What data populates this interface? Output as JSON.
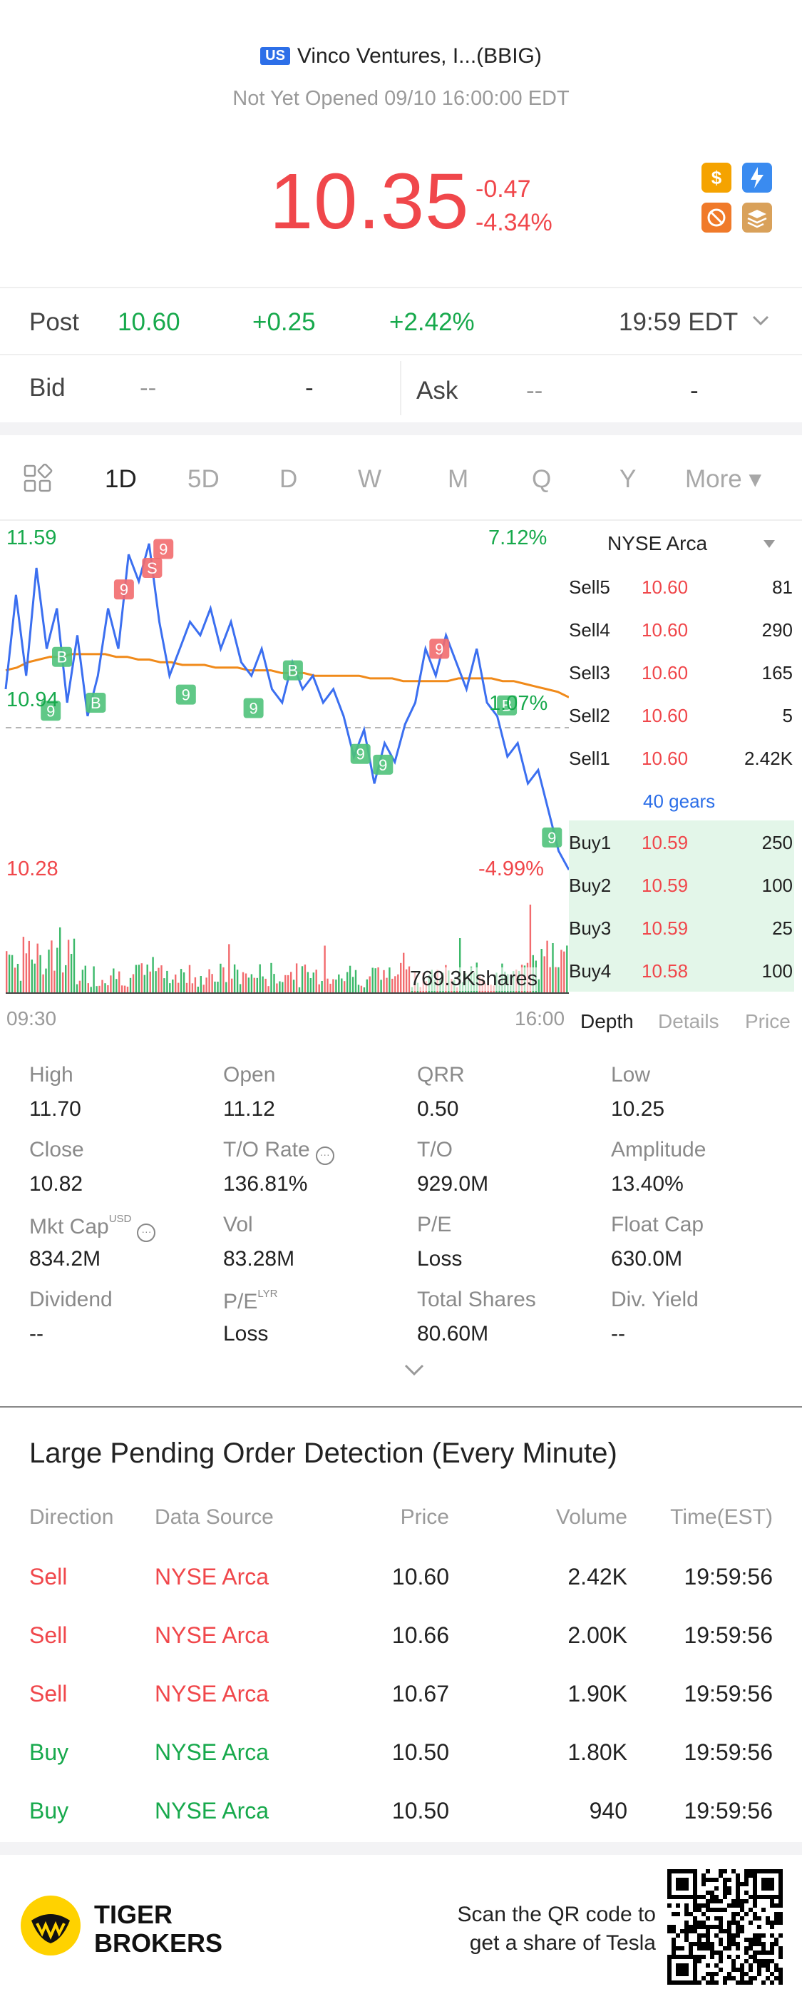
{
  "header": {
    "market_badge": "US",
    "title": "Vinco Ventures, I...(BBIG)",
    "status": "Not Yet Opened 09/10 16:00:00 EDT",
    "price": "10.35",
    "change": "-0.47",
    "change_pct": "-4.34%",
    "quick_icons": [
      "dollar-icon",
      "flash-1-icon",
      "no-short-icon",
      "layers-a-icon"
    ]
  },
  "post": {
    "label": "Post",
    "price": "10.60",
    "change": "+0.25",
    "change_pct": "+2.42%",
    "time": "19:59 EDT"
  },
  "bid_ask": {
    "bid_label": "Bid",
    "bid_price": "--",
    "bid_vol": "-",
    "ask_label": "Ask",
    "ask_price": "--",
    "ask_vol": "-"
  },
  "tabs": [
    "1D",
    "5D",
    "D",
    "W",
    "M",
    "Q",
    "Y",
    "More ▾"
  ],
  "active_tab": "1D",
  "chart_labels": {
    "high": "11.59",
    "mid": "10.94",
    "low": "10.28",
    "pct_high": "7.12%",
    "pct_mid": "1.07%",
    "pct_low": "-4.99%",
    "volume": "769.3Kshares",
    "time_start": "09:30",
    "time_end": "16:00"
  },
  "chart_data": {
    "type": "line",
    "x_range": [
      "09:30",
      "16:00"
    ],
    "ylim": [
      10.28,
      11.59
    ],
    "reference": 10.82,
    "series": [
      {
        "values": [
          11.05,
          11.4,
          11.1,
          11.5,
          11.2,
          11.35,
          11.0,
          11.25,
          10.95,
          11.1,
          11.35,
          11.2,
          11.55,
          11.45,
          11.59,
          11.3,
          11.1,
          11.2,
          11.3,
          11.25,
          11.35,
          11.2,
          11.3,
          11.15,
          11.1,
          11.2,
          11.05,
          11.0,
          11.15,
          11.05,
          11.1,
          11.0,
          11.05,
          10.95,
          10.8,
          10.9,
          10.7,
          10.85,
          10.78,
          10.92,
          11.0,
          11.2,
          11.1,
          11.25,
          11.15,
          11.05,
          11.2,
          11.0,
          10.95,
          10.8,
          10.85,
          10.7,
          10.75,
          10.6,
          10.45,
          10.38
        ]
      },
      {
        "values": [
          11.12,
          11.13,
          11.15,
          11.16,
          11.17,
          11.17,
          11.18,
          11.18,
          11.18,
          11.18,
          11.17,
          11.17,
          11.16,
          11.16,
          11.15,
          11.15,
          11.14,
          11.14,
          11.14,
          11.13,
          11.13,
          11.13,
          11.12,
          11.12,
          11.12,
          11.11,
          11.11,
          11.11,
          11.1,
          11.1,
          11.1,
          11.1,
          11.1,
          11.09,
          11.09,
          11.09,
          11.08,
          11.08,
          11.08,
          11.08,
          11.08,
          11.09,
          11.09,
          11.09,
          11.09,
          11.08,
          11.08,
          11.07,
          11.06,
          11.05,
          11.04,
          11.02
        ]
      }
    ],
    "signals": [
      {
        "label": "9",
        "kind": "sell",
        "t": 0.21,
        "v": 11.42
      },
      {
        "label": "S",
        "kind": "sell",
        "t": 0.26,
        "v": 11.5
      },
      {
        "label": "9",
        "kind": "sell",
        "t": 0.28,
        "v": 11.57
      },
      {
        "label": "9",
        "kind": "sell",
        "t": 0.77,
        "v": 11.2
      },
      {
        "label": "B",
        "kind": "buy",
        "t": 0.1,
        "v": 11.17
      },
      {
        "label": "9",
        "kind": "buy",
        "t": 0.08,
        "v": 10.97
      },
      {
        "label": "B",
        "kind": "buy",
        "t": 0.16,
        "v": 11.0
      },
      {
        "label": "9",
        "kind": "buy",
        "t": 0.32,
        "v": 11.03
      },
      {
        "label": "B",
        "kind": "buy",
        "t": 0.51,
        "v": 11.12
      },
      {
        "label": "9",
        "kind": "buy",
        "t": 0.44,
        "v": 10.98
      },
      {
        "label": "9",
        "kind": "buy",
        "t": 0.63,
        "v": 10.81
      },
      {
        "label": "9",
        "kind": "buy",
        "t": 0.67,
        "v": 10.77
      },
      {
        "label": "B",
        "kind": "buy",
        "t": 0.89,
        "v": 10.99
      },
      {
        "label": "9",
        "kind": "buy",
        "t": 0.97,
        "v": 10.5
      }
    ]
  },
  "order_book": {
    "exchange": "NYSE Arca",
    "sells": [
      {
        "label": "Sell5",
        "price": "10.60",
        "vol": "81"
      },
      {
        "label": "Sell4",
        "price": "10.60",
        "vol": "290"
      },
      {
        "label": "Sell3",
        "price": "10.60",
        "vol": "165"
      },
      {
        "label": "Sell2",
        "price": "10.60",
        "vol": "5"
      },
      {
        "label": "Sell1",
        "price": "10.60",
        "vol": "2.42K"
      }
    ],
    "gears": "40 gears",
    "buys": [
      {
        "label": "Buy1",
        "price": "10.59",
        "vol": "250"
      },
      {
        "label": "Buy2",
        "price": "10.59",
        "vol": "100"
      },
      {
        "label": "Buy3",
        "price": "10.59",
        "vol": "25"
      },
      {
        "label": "Buy4",
        "price": "10.58",
        "vol": "100"
      }
    ],
    "tabs": [
      "Depth",
      "Details",
      "Price"
    ]
  },
  "stats": [
    {
      "label": "High",
      "value": "11.70"
    },
    {
      "label": "Open",
      "value": "11.12"
    },
    {
      "label": "QRR",
      "value": "0.50"
    },
    {
      "label": "Low",
      "value": "10.25"
    },
    {
      "label": "Close",
      "value": "10.82"
    },
    {
      "label": "T/O Rate",
      "value": "136.81%"
    },
    {
      "label": "T/O",
      "value": "929.0M"
    },
    {
      "label": "Amplitude",
      "value": "13.40%"
    },
    {
      "label": "Mkt Cap",
      "value": "834.2M",
      "sup": "USD"
    },
    {
      "label": "Vol",
      "value": "83.28M"
    },
    {
      "label": "P/E",
      "value": "Loss"
    },
    {
      "label": "Float Cap",
      "value": "630.0M"
    },
    {
      "label": "Dividend",
      "value": "--"
    },
    {
      "label": "P/E",
      "value": "Loss",
      "sup": "LYR"
    },
    {
      "label": "Total Shares",
      "value": "80.60M"
    },
    {
      "label": "Div. Yield",
      "value": "--"
    }
  ],
  "large_orders": {
    "title": "Large Pending Order Detection (Every Minute)",
    "headers": [
      "Direction",
      "Data Source",
      "Price",
      "Volume",
      "Time(EST)"
    ],
    "rows": [
      {
        "direction": "Sell",
        "source": "NYSE Arca",
        "price": "10.60",
        "volume": "2.42K",
        "time": "19:59:56"
      },
      {
        "direction": "Sell",
        "source": "NYSE Arca",
        "price": "10.66",
        "volume": "2.00K",
        "time": "19:59:56"
      },
      {
        "direction": "Sell",
        "source": "NYSE Arca",
        "price": "10.67",
        "volume": "1.90K",
        "time": "19:59:56"
      },
      {
        "direction": "Buy",
        "source": "NYSE Arca",
        "price": "10.50",
        "volume": "1.80K",
        "time": "19:59:56"
      },
      {
        "direction": "Buy",
        "source": "NYSE Arca",
        "price": "10.50",
        "volume": "940",
        "time": "19:59:56"
      }
    ]
  },
  "footer": {
    "brand_line1": "TIGER",
    "brand_line2": "BROKERS",
    "cta_line1": "Scan the QR code to",
    "cta_line2": "get a share of Tesla"
  },
  "colors": {
    "up": "#17a94c",
    "down": "#f0474b",
    "line": "#3b6ff0",
    "avg": "#f08a1a",
    "accent": "#2d6fe8"
  }
}
